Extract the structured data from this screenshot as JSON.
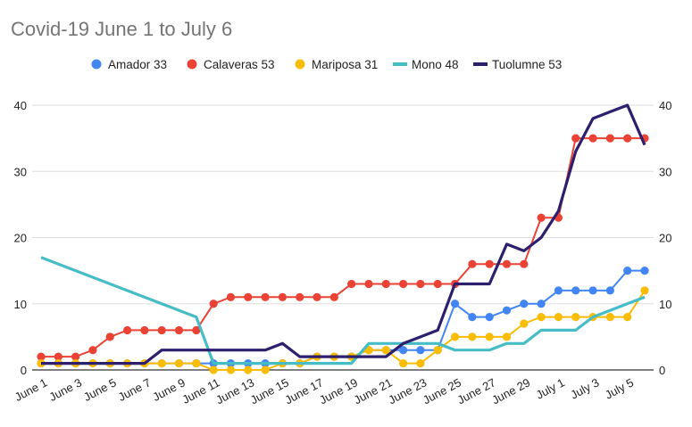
{
  "chart_data": {
    "type": "line",
    "title": "Covid-19 June 1 to July 6",
    "legend_position": "top",
    "grid": true,
    "ylim": [
      0,
      40
    ],
    "y_ticks": [
      0,
      10,
      20,
      30,
      40
    ],
    "y_ticks_right": [
      0,
      10,
      20,
      30,
      40
    ],
    "x": [
      "June 1",
      "June 2",
      "June 3",
      "June 4",
      "June 5",
      "June 6",
      "June 7",
      "June 8",
      "June 9",
      "June 10",
      "June 11",
      "June 12",
      "June 13",
      "June 14",
      "June 15",
      "June 16",
      "June 17",
      "June 18",
      "June 19",
      "June 20",
      "June 21",
      "June 22",
      "June 23",
      "June 24",
      "June 25",
      "June 26",
      "June 27",
      "June 28",
      "June 29",
      "June 30",
      "July 1",
      "July 2",
      "July 3",
      "July 4",
      "July 5",
      "July 6"
    ],
    "x_tick_labels": [
      "June 1",
      "June 3",
      "June 5",
      "June 7",
      "June 9",
      "June 11",
      "June 13",
      "June 15",
      "June 17",
      "June 19",
      "June 21",
      "June 23",
      "June 25",
      "June 27",
      "June 29",
      "July 1",
      "July 3",
      "July 5"
    ],
    "series": [
      {
        "name": "Amador 33",
        "color": "#4285f4",
        "markers": true,
        "values": [
          1,
          1,
          1,
          1,
          1,
          1,
          1,
          1,
          1,
          1,
          1,
          1,
          1,
          1,
          1,
          1,
          2,
          2,
          2,
          3,
          3,
          3,
          3,
          3,
          10,
          8,
          8,
          9,
          10,
          10,
          12,
          12,
          12,
          12,
          15,
          15
        ]
      },
      {
        "name": "Calaveras 53",
        "color": "#ea4335",
        "markers": true,
        "values": [
          2,
          2,
          2,
          3,
          5,
          6,
          6,
          6,
          6,
          6,
          10,
          11,
          11,
          11,
          11,
          11,
          11,
          11,
          13,
          13,
          13,
          13,
          13,
          13,
          13,
          16,
          16,
          16,
          16,
          23,
          23,
          35,
          35,
          35,
          35,
          35
        ]
      },
      {
        "name": "Mariposa 31",
        "color": "#fbbc04",
        "markers": true,
        "values": [
          1,
          1,
          1,
          1,
          1,
          1,
          1,
          1,
          1,
          1,
          0,
          0,
          0,
          0,
          1,
          1,
          2,
          2,
          2,
          3,
          3,
          1,
          1,
          3,
          5,
          5,
          5,
          5,
          7,
          8,
          8,
          8,
          8,
          8,
          8,
          12
        ]
      },
      {
        "name": "Mono 48",
        "color": "#46bdc6",
        "markers": false,
        "values": [
          17,
          null,
          null,
          null,
          null,
          null,
          null,
          null,
          null,
          8,
          1,
          1,
          1,
          1,
          1,
          1,
          1,
          1,
          1,
          4,
          4,
          4,
          4,
          4,
          3,
          3,
          3,
          4,
          4,
          6,
          6,
          6,
          8,
          null,
          null,
          11
        ]
      },
      {
        "name": "Tuolumne 53",
        "color": "#2e1f6e",
        "markers": false,
        "values": [
          1,
          1,
          1,
          1,
          1,
          1,
          1,
          3,
          3,
          3,
          3,
          3,
          3,
          3,
          4,
          2,
          2,
          2,
          2,
          2,
          2,
          4,
          5,
          6,
          13,
          13,
          13,
          19,
          18,
          20,
          24,
          33,
          38,
          39,
          40,
          34
        ]
      }
    ]
  }
}
